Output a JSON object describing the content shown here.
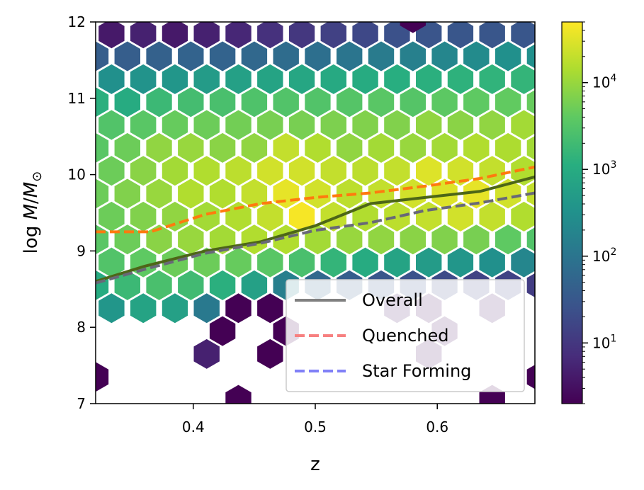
{
  "chart_data": {
    "type": "hexbin",
    "xlabel": "z",
    "ylabel": "log M/M⊙",
    "ylabel_parts": {
      "pre": "log ",
      "m": "M",
      "slash": "/",
      "m2": "M",
      "sub": "⊙"
    },
    "xlim": [
      0.32,
      0.68
    ],
    "ylim": [
      7,
      12
    ],
    "xticks": [
      {
        "value": 0.4,
        "label": "0.4"
      },
      {
        "value": 0.5,
        "label": "0.5"
      },
      {
        "value": 0.6,
        "label": "0.6"
      }
    ],
    "yticks": [
      {
        "value": 7,
        "label": "7"
      },
      {
        "value": 8,
        "label": "8"
      },
      {
        "value": 9,
        "label": "9"
      },
      {
        "value": 10,
        "label": "10"
      },
      {
        "value": 11,
        "label": "11"
      },
      {
        "value": 12,
        "label": "12"
      }
    ],
    "colorbar": {
      "scale": "log",
      "colormap": "viridis",
      "min": 2,
      "max": 50000,
      "ticks": [
        {
          "value": 10,
          "base": "10",
          "exp": "1"
        },
        {
          "value": 100,
          "base": "10",
          "exp": "2"
        },
        {
          "value": 1000,
          "base": "10",
          "exp": "3"
        },
        {
          "value": 10000,
          "base": "10",
          "exp": "4"
        }
      ]
    },
    "series": [
      {
        "name": "Overall",
        "style": "solid",
        "color": "#4d6617",
        "legend_color": "#808080",
        "x": [
          0.32,
          0.36,
          0.41,
          0.455,
          0.5,
          0.545,
          0.59,
          0.635,
          0.68
        ],
        "y": [
          8.6,
          8.8,
          9.0,
          9.12,
          9.33,
          9.62,
          9.7,
          9.78,
          9.97
        ]
      },
      {
        "name": "Quenched",
        "style": "dashed",
        "color": "#ff7a0e",
        "legend_color": "#f78080",
        "x": [
          0.32,
          0.365,
          0.41,
          0.455,
          0.5,
          0.545,
          0.59,
          0.635,
          0.68
        ],
        "y": [
          9.25,
          9.25,
          9.48,
          9.62,
          9.7,
          9.76,
          9.85,
          9.95,
          10.1
        ]
      },
      {
        "name": "Star Forming",
        "style": "dashed",
        "color": "#686878",
        "legend_color": "#8080f7",
        "x": [
          0.32,
          0.365,
          0.41,
          0.455,
          0.5,
          0.545,
          0.59,
          0.635,
          0.68
        ],
        "y": [
          8.58,
          8.78,
          8.97,
          9.1,
          9.27,
          9.37,
          9.53,
          9.63,
          9.76
        ]
      }
    ],
    "legend": {
      "location": "lower right"
    },
    "hexbins": [
      {
        "x": 0.333,
        "y": 11.85,
        "count": 4
      },
      {
        "x": 0.359,
        "y": 11.85,
        "count": 5
      },
      {
        "x": 0.385,
        "y": 11.85,
        "count": 4
      },
      {
        "x": 0.411,
        "y": 11.85,
        "count": 5
      },
      {
        "x": 0.437,
        "y": 11.85,
        "count": 6
      },
      {
        "x": 0.463,
        "y": 11.85,
        "count": 8
      },
      {
        "x": 0.489,
        "y": 11.85,
        "count": 10
      },
      {
        "x": 0.515,
        "y": 11.85,
        "count": 14
      },
      {
        "x": 0.541,
        "y": 11.85,
        "count": 18
      },
      {
        "x": 0.567,
        "y": 11.85,
        "count": 24
      },
      {
        "x": 0.593,
        "y": 11.85,
        "count": 28
      },
      {
        "x": 0.619,
        "y": 11.85,
        "count": 30
      },
      {
        "x": 0.645,
        "y": 11.85,
        "count": 30
      },
      {
        "x": 0.671,
        "y": 11.85,
        "count": 30
      },
      {
        "x": 0.58,
        "y": 12.05,
        "count": 2
      },
      {
        "x": 0.32,
        "y": 11.55,
        "count": 40
      },
      {
        "x": 0.346,
        "y": 11.55,
        "count": 40
      },
      {
        "x": 0.372,
        "y": 11.55,
        "count": 45
      },
      {
        "x": 0.398,
        "y": 11.55,
        "count": 50
      },
      {
        "x": 0.424,
        "y": 11.55,
        "count": 50
      },
      {
        "x": 0.45,
        "y": 11.55,
        "count": 60
      },
      {
        "x": 0.476,
        "y": 11.55,
        "count": 70
      },
      {
        "x": 0.502,
        "y": 11.55,
        "count": 80
      },
      {
        "x": 0.528,
        "y": 11.55,
        "count": 100
      },
      {
        "x": 0.554,
        "y": 11.55,
        "count": 130
      },
      {
        "x": 0.58,
        "y": 11.55,
        "count": 160
      },
      {
        "x": 0.606,
        "y": 11.55,
        "count": 200
      },
      {
        "x": 0.632,
        "y": 11.55,
        "count": 250
      },
      {
        "x": 0.658,
        "y": 11.55,
        "count": 300
      },
      {
        "x": 0.684,
        "y": 11.55,
        "count": 300
      },
      {
        "x": 0.333,
        "y": 11.25,
        "count": 300
      },
      {
        "x": 0.359,
        "y": 11.25,
        "count": 350
      },
      {
        "x": 0.385,
        "y": 11.25,
        "count": 400
      },
      {
        "x": 0.411,
        "y": 11.25,
        "count": 500
      },
      {
        "x": 0.437,
        "y": 11.25,
        "count": 600
      },
      {
        "x": 0.463,
        "y": 11.25,
        "count": 700
      },
      {
        "x": 0.489,
        "y": 11.25,
        "count": 800
      },
      {
        "x": 0.515,
        "y": 11.25,
        "count": 900
      },
      {
        "x": 0.541,
        "y": 11.25,
        "count": 1000
      },
      {
        "x": 0.567,
        "y": 11.25,
        "count": 1100
      },
      {
        "x": 0.593,
        "y": 11.25,
        "count": 1200
      },
      {
        "x": 0.619,
        "y": 11.25,
        "count": 1300
      },
      {
        "x": 0.645,
        "y": 11.25,
        "count": 1400
      },
      {
        "x": 0.671,
        "y": 11.25,
        "count": 1500
      },
      {
        "x": 0.32,
        "y": 10.95,
        "count": 1200
      },
      {
        "x": 0.346,
        "y": 10.95,
        "count": 1000
      },
      {
        "x": 0.372,
        "y": 10.95,
        "count": 1800
      },
      {
        "x": 0.398,
        "y": 10.95,
        "count": 2200
      },
      {
        "x": 0.424,
        "y": 10.95,
        "count": 2500
      },
      {
        "x": 0.45,
        "y": 10.95,
        "count": 2800
      },
      {
        "x": 0.476,
        "y": 10.95,
        "count": 3000
      },
      {
        "x": 0.502,
        "y": 10.95,
        "count": 3000
      },
      {
        "x": 0.528,
        "y": 10.95,
        "count": 3200
      },
      {
        "x": 0.554,
        "y": 10.95,
        "count": 3500
      },
      {
        "x": 0.58,
        "y": 10.95,
        "count": 3200
      },
      {
        "x": 0.606,
        "y": 10.95,
        "count": 3800
      },
      {
        "x": 0.632,
        "y": 10.95,
        "count": 4000
      },
      {
        "x": 0.658,
        "y": 10.95,
        "count": 4200
      },
      {
        "x": 0.684,
        "y": 10.95,
        "count": 4500
      },
      {
        "x": 0.333,
        "y": 10.65,
        "count": 3000
      },
      {
        "x": 0.359,
        "y": 10.65,
        "count": 3500
      },
      {
        "x": 0.385,
        "y": 10.65,
        "count": 4500
      },
      {
        "x": 0.411,
        "y": 10.65,
        "count": 5000
      },
      {
        "x": 0.437,
        "y": 10.65,
        "count": 5500
      },
      {
        "x": 0.463,
        "y": 10.65,
        "count": 6000
      },
      {
        "x": 0.489,
        "y": 10.65,
        "count": 6000
      },
      {
        "x": 0.515,
        "y": 10.65,
        "count": 6500
      },
      {
        "x": 0.541,
        "y": 10.65,
        "count": 7000
      },
      {
        "x": 0.567,
        "y": 10.65,
        "count": 7000
      },
      {
        "x": 0.593,
        "y": 10.65,
        "count": 9000
      },
      {
        "x": 0.619,
        "y": 10.65,
        "count": 8000
      },
      {
        "x": 0.645,
        "y": 10.65,
        "count": 9000
      },
      {
        "x": 0.671,
        "y": 10.65,
        "count": 12000
      },
      {
        "x": 0.32,
        "y": 10.35,
        "count": 3500
      },
      {
        "x": 0.346,
        "y": 10.35,
        "count": 5000
      },
      {
        "x": 0.372,
        "y": 10.35,
        "count": 9000
      },
      {
        "x": 0.398,
        "y": 10.35,
        "count": 10000
      },
      {
        "x": 0.424,
        "y": 10.35,
        "count": 8000
      },
      {
        "x": 0.45,
        "y": 10.35,
        "count": 9000
      },
      {
        "x": 0.476,
        "y": 10.35,
        "count": 20000
      },
      {
        "x": 0.502,
        "y": 10.35,
        "count": 15000
      },
      {
        "x": 0.528,
        "y": 10.35,
        "count": 9000
      },
      {
        "x": 0.554,
        "y": 10.35,
        "count": 12000
      },
      {
        "x": 0.58,
        "y": 10.35,
        "count": 10000
      },
      {
        "x": 0.606,
        "y": 10.35,
        "count": 12000
      },
      {
        "x": 0.632,
        "y": 10.35,
        "count": 15000
      },
      {
        "x": 0.658,
        "y": 10.35,
        "count": 14000
      },
      {
        "x": 0.684,
        "y": 10.35,
        "count": 12000
      },
      {
        "x": 0.333,
        "y": 10.05,
        "count": 5000
      },
      {
        "x": 0.359,
        "y": 10.05,
        "count": 8000
      },
      {
        "x": 0.385,
        "y": 10.05,
        "count": 12000
      },
      {
        "x": 0.411,
        "y": 10.05,
        "count": 15000
      },
      {
        "x": 0.437,
        "y": 10.05,
        "count": 18000
      },
      {
        "x": 0.463,
        "y": 10.05,
        "count": 25000
      },
      {
        "x": 0.489,
        "y": 10.05,
        "count": 25000
      },
      {
        "x": 0.515,
        "y": 10.05,
        "count": 20000
      },
      {
        "x": 0.541,
        "y": 10.05,
        "count": 18000
      },
      {
        "x": 0.567,
        "y": 10.05,
        "count": 20000
      },
      {
        "x": 0.593,
        "y": 10.05,
        "count": 30000
      },
      {
        "x": 0.619,
        "y": 10.05,
        "count": 25000
      },
      {
        "x": 0.645,
        "y": 10.05,
        "count": 20000
      },
      {
        "x": 0.671,
        "y": 10.05,
        "count": 15000
      },
      {
        "x": 0.32,
        "y": 9.75,
        "count": 5000
      },
      {
        "x": 0.346,
        "y": 9.75,
        "count": 7000
      },
      {
        "x": 0.372,
        "y": 9.75,
        "count": 10000
      },
      {
        "x": 0.398,
        "y": 9.75,
        "count": 15000
      },
      {
        "x": 0.424,
        "y": 9.75,
        "count": 15000
      },
      {
        "x": 0.45,
        "y": 9.75,
        "count": 20000
      },
      {
        "x": 0.476,
        "y": 9.75,
        "count": 35000
      },
      {
        "x": 0.502,
        "y": 9.75,
        "count": 25000
      },
      {
        "x": 0.528,
        "y": 9.75,
        "count": 18000
      },
      {
        "x": 0.554,
        "y": 9.75,
        "count": 20000
      },
      {
        "x": 0.58,
        "y": 9.75,
        "count": 25000
      },
      {
        "x": 0.606,
        "y": 9.75,
        "count": 30000
      },
      {
        "x": 0.632,
        "y": 9.75,
        "count": 35000
      },
      {
        "x": 0.658,
        "y": 9.75,
        "count": 25000
      },
      {
        "x": 0.684,
        "y": 9.75,
        "count": 20000
      },
      {
        "x": 0.333,
        "y": 9.45,
        "count": 5000
      },
      {
        "x": 0.359,
        "y": 9.45,
        "count": 7000
      },
      {
        "x": 0.385,
        "y": 9.45,
        "count": 9000
      },
      {
        "x": 0.411,
        "y": 9.45,
        "count": 12000
      },
      {
        "x": 0.437,
        "y": 9.45,
        "count": 15000
      },
      {
        "x": 0.463,
        "y": 9.45,
        "count": 20000
      },
      {
        "x": 0.489,
        "y": 9.45,
        "count": 45000
      },
      {
        "x": 0.515,
        "y": 9.45,
        "count": 20000
      },
      {
        "x": 0.541,
        "y": 9.45,
        "count": 15000
      },
      {
        "x": 0.567,
        "y": 9.45,
        "count": 18000
      },
      {
        "x": 0.593,
        "y": 9.45,
        "count": 20000
      },
      {
        "x": 0.619,
        "y": 9.45,
        "count": 25000
      },
      {
        "x": 0.645,
        "y": 9.45,
        "count": 20000
      },
      {
        "x": 0.671,
        "y": 9.45,
        "count": 15000
      },
      {
        "x": 0.32,
        "y": 9.15,
        "count": 3500
      },
      {
        "x": 0.346,
        "y": 9.15,
        "count": 5000
      },
      {
        "x": 0.372,
        "y": 9.15,
        "count": 8000
      },
      {
        "x": 0.398,
        "y": 9.15,
        "count": 10000
      },
      {
        "x": 0.424,
        "y": 9.15,
        "count": 12000
      },
      {
        "x": 0.45,
        "y": 9.15,
        "count": 15000
      },
      {
        "x": 0.476,
        "y": 9.15,
        "count": 15000
      },
      {
        "x": 0.502,
        "y": 9.15,
        "count": 12000
      },
      {
        "x": 0.528,
        "y": 9.15,
        "count": 10000
      },
      {
        "x": 0.554,
        "y": 9.15,
        "count": 9000
      },
      {
        "x": 0.58,
        "y": 9.15,
        "count": 8000
      },
      {
        "x": 0.606,
        "y": 9.15,
        "count": 7000
      },
      {
        "x": 0.632,
        "y": 9.15,
        "count": 6000
      },
      {
        "x": 0.658,
        "y": 9.15,
        "count": 4000
      },
      {
        "x": 0.684,
        "y": 9.15,
        "count": 3000
      },
      {
        "x": 0.333,
        "y": 8.85,
        "count": 3000
      },
      {
        "x": 0.359,
        "y": 8.85,
        "count": 4000
      },
      {
        "x": 0.385,
        "y": 8.85,
        "count": 5000
      },
      {
        "x": 0.411,
        "y": 8.85,
        "count": 5000
      },
      {
        "x": 0.437,
        "y": 8.85,
        "count": 4500
      },
      {
        "x": 0.463,
        "y": 8.85,
        "count": 3500
      },
      {
        "x": 0.489,
        "y": 8.85,
        "count": 2500
      },
      {
        "x": 0.515,
        "y": 8.85,
        "count": 1500
      },
      {
        "x": 0.541,
        "y": 8.85,
        "count": 1000
      },
      {
        "x": 0.567,
        "y": 8.85,
        "count": 700
      },
      {
        "x": 0.593,
        "y": 8.85,
        "count": 500
      },
      {
        "x": 0.619,
        "y": 8.85,
        "count": 400
      },
      {
        "x": 0.645,
        "y": 8.85,
        "count": 300
      },
      {
        "x": 0.671,
        "y": 8.85,
        "count": 200
      },
      {
        "x": 0.32,
        "y": 8.55,
        "count": 1000
      },
      {
        "x": 0.346,
        "y": 8.55,
        "count": 1800
      },
      {
        "x": 0.372,
        "y": 8.55,
        "count": 2500
      },
      {
        "x": 0.398,
        "y": 8.55,
        "count": 2000
      },
      {
        "x": 0.424,
        "y": 8.55,
        "count": 1200
      },
      {
        "x": 0.45,
        "y": 8.55,
        "count": 600
      },
      {
        "x": 0.476,
        "y": 8.55,
        "count": 150
      },
      {
        "x": 0.502,
        "y": 8.55,
        "count": 60
      },
      {
        "x": 0.528,
        "y": 8.55,
        "count": 40
      },
      {
        "x": 0.554,
        "y": 8.55,
        "count": 30
      },
      {
        "x": 0.58,
        "y": 8.55,
        "count": 25
      },
      {
        "x": 0.606,
        "y": 8.55,
        "count": 20
      },
      {
        "x": 0.632,
        "y": 8.55,
        "count": 15
      },
      {
        "x": 0.658,
        "y": 8.55,
        "count": 15
      },
      {
        "x": 0.684,
        "y": 8.55,
        "count": 12
      },
      {
        "x": 0.333,
        "y": 8.25,
        "count": 400
      },
      {
        "x": 0.359,
        "y": 8.25,
        "count": 700
      },
      {
        "x": 0.385,
        "y": 8.25,
        "count": 600
      },
      {
        "x": 0.411,
        "y": 8.25,
        "count": 120
      },
      {
        "x": 0.437,
        "y": 8.25,
        "count": 2
      },
      {
        "x": 0.463,
        "y": 8.25,
        "count": 2
      },
      {
        "x": 0.567,
        "y": 8.25,
        "count": 4
      },
      {
        "x": 0.593,
        "y": 8.25,
        "count": 3
      },
      {
        "x": 0.645,
        "y": 8.25,
        "count": 4
      },
      {
        "x": 0.424,
        "y": 7.95,
        "count": 2
      },
      {
        "x": 0.476,
        "y": 7.95,
        "count": 2
      },
      {
        "x": 0.606,
        "y": 7.95,
        "count": 3
      },
      {
        "x": 0.411,
        "y": 7.65,
        "count": 5
      },
      {
        "x": 0.463,
        "y": 7.65,
        "count": 2
      },
      {
        "x": 0.593,
        "y": 7.65,
        "count": 3
      },
      {
        "x": 0.32,
        "y": 7.35,
        "count": 2
      },
      {
        "x": 0.684,
        "y": 7.35,
        "count": 2
      },
      {
        "x": 0.437,
        "y": 7.05,
        "count": 2
      },
      {
        "x": 0.645,
        "y": 7.05,
        "count": 2
      }
    ]
  }
}
